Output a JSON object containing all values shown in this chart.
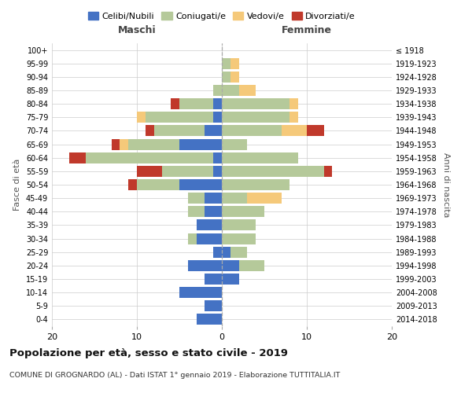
{
  "age_groups": [
    "0-4",
    "5-9",
    "10-14",
    "15-19",
    "20-24",
    "25-29",
    "30-34",
    "35-39",
    "40-44",
    "45-49",
    "50-54",
    "55-59",
    "60-64",
    "65-69",
    "70-74",
    "75-79",
    "80-84",
    "85-89",
    "90-94",
    "95-99",
    "100+"
  ],
  "birth_years": [
    "2014-2018",
    "2009-2013",
    "2004-2008",
    "1999-2003",
    "1994-1998",
    "1989-1993",
    "1984-1988",
    "1979-1983",
    "1974-1978",
    "1969-1973",
    "1964-1968",
    "1959-1963",
    "1954-1958",
    "1949-1953",
    "1944-1948",
    "1939-1943",
    "1934-1938",
    "1929-1933",
    "1924-1928",
    "1919-1923",
    "≤ 1918"
  ],
  "colors": {
    "celibi": "#4472C4",
    "coniugati": "#b5c99a",
    "vedovi": "#f5c97a",
    "divorziati": "#c0392b"
  },
  "maschi": {
    "celibi": [
      3,
      2,
      5,
      2,
      4,
      1,
      3,
      3,
      2,
      2,
      5,
      1,
      1,
      5,
      2,
      1,
      1,
      0,
      0,
      0,
      0
    ],
    "coniugati": [
      0,
      0,
      0,
      0,
      0,
      0,
      1,
      0,
      2,
      2,
      5,
      6,
      15,
      6,
      6,
      8,
      4,
      1,
      0,
      0,
      0
    ],
    "vedovi": [
      0,
      0,
      0,
      0,
      0,
      0,
      0,
      0,
      0,
      0,
      0,
      0,
      0,
      1,
      0,
      1,
      0,
      0,
      0,
      0,
      0
    ],
    "divorziati": [
      0,
      0,
      0,
      0,
      0,
      0,
      0,
      0,
      0,
      0,
      1,
      3,
      2,
      1,
      1,
      0,
      1,
      0,
      0,
      0,
      0
    ]
  },
  "femmine": {
    "nubili": [
      0,
      0,
      0,
      2,
      2,
      1,
      0,
      0,
      0,
      0,
      0,
      0,
      0,
      0,
      0,
      0,
      0,
      0,
      0,
      0,
      0
    ],
    "coniugate": [
      0,
      0,
      0,
      0,
      3,
      2,
      4,
      4,
      5,
      3,
      8,
      12,
      9,
      3,
      7,
      8,
      8,
      2,
      1,
      1,
      0
    ],
    "vedove": [
      0,
      0,
      0,
      0,
      0,
      0,
      0,
      0,
      0,
      4,
      0,
      0,
      0,
      0,
      3,
      1,
      1,
      2,
      1,
      1,
      0
    ],
    "divorziate": [
      0,
      0,
      0,
      0,
      0,
      0,
      0,
      0,
      0,
      0,
      0,
      1,
      0,
      0,
      2,
      0,
      0,
      0,
      0,
      0,
      0
    ]
  },
  "title": "Popolazione per età, sesso e stato civile - 2019",
  "subtitle": "COMUNE DI GROGNARDO (AL) - Dati ISTAT 1° gennaio 2019 - Elaborazione TUTTITALIA.IT",
  "xlabel_left": "Maschi",
  "xlabel_right": "Femmine",
  "ylabel_left": "Fasce di età",
  "ylabel_right": "Anni di nascita",
  "xlim": 20,
  "legend_labels": [
    "Celibi/Nubili",
    "Coniugati/e",
    "Vedovi/e",
    "Divorziati/e"
  ]
}
